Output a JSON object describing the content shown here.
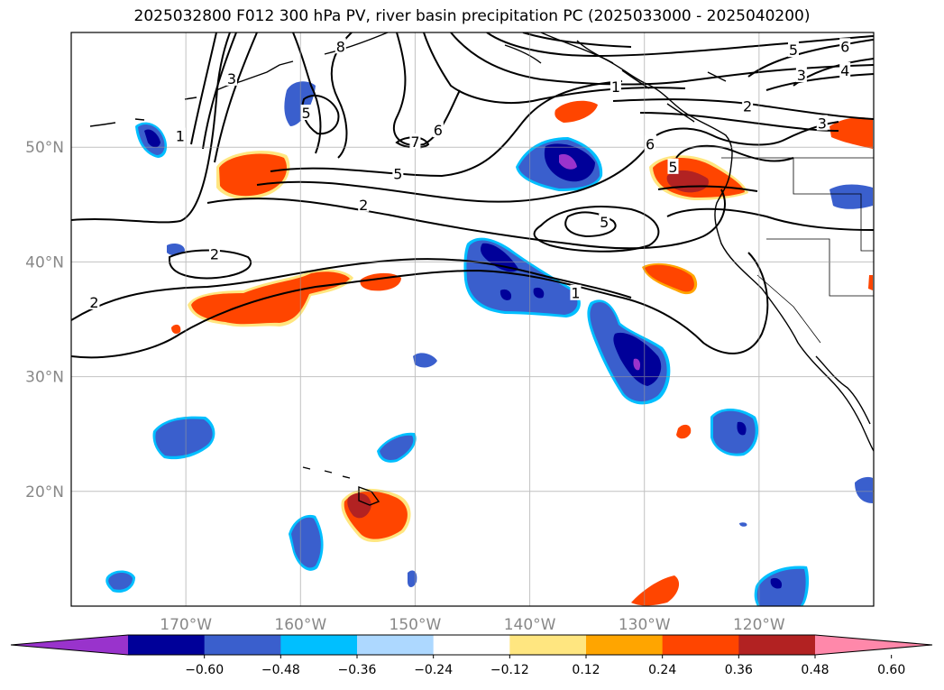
{
  "title": "2025032800 F012 300 hPa PV, river basin precipitation PC (2025033000 - 2025040200)",
  "map": {
    "lon_range": [
      -180,
      -110
    ],
    "lat_range": [
      10,
      60
    ],
    "lon_ticks": [
      {
        "value": -170,
        "label": "170°W"
      },
      {
        "value": -160,
        "label": "160°W"
      },
      {
        "value": -150,
        "label": "150°W"
      },
      {
        "value": -140,
        "label": "140°W"
      },
      {
        "value": -130,
        "label": "130°W"
      },
      {
        "value": -120,
        "label": "120°W"
      }
    ],
    "lat_ticks": [
      {
        "value": 50,
        "label": "50°N"
      },
      {
        "value": 40,
        "label": "40°N"
      },
      {
        "value": 30,
        "label": "30°N"
      },
      {
        "value": 20,
        "label": "20°N"
      }
    ],
    "gridlines": true
  },
  "contour_labels": [
    {
      "text": "1",
      "lon": -170.5,
      "lat": 51
    },
    {
      "text": "3",
      "lon": -166,
      "lat": 56
    },
    {
      "text": "8",
      "lon": -156.5,
      "lat": 58.8
    },
    {
      "text": "5",
      "lon": -159.5,
      "lat": 53
    },
    {
      "text": "7",
      "lon": -150,
      "lat": 50.5
    },
    {
      "text": "6",
      "lon": -148,
      "lat": 51.5
    },
    {
      "text": "5",
      "lon": -151.5,
      "lat": 47.7
    },
    {
      "text": "2",
      "lon": -154.5,
      "lat": 45
    },
    {
      "text": "2",
      "lon": -167.5,
      "lat": 40.7
    },
    {
      "text": "2",
      "lon": -178,
      "lat": 36.5
    },
    {
      "text": "1",
      "lon": -132.5,
      "lat": 55.3
    },
    {
      "text": "2",
      "lon": -121,
      "lat": 53.6
    },
    {
      "text": "3",
      "lon": -114.5,
      "lat": 52.1
    },
    {
      "text": "3",
      "lon": -116.3,
      "lat": 56.3
    },
    {
      "text": "4",
      "lon": -112.5,
      "lat": 56.7
    },
    {
      "text": "5",
      "lon": -117,
      "lat": 58.5
    },
    {
      "text": "6",
      "lon": -112.5,
      "lat": 58.8
    },
    {
      "text": "6",
      "lon": -129.5,
      "lat": 50.3
    },
    {
      "text": "5",
      "lon": -127.5,
      "lat": 48.3
    },
    {
      "text": "5",
      "lon": -133.5,
      "lat": 43.5
    },
    {
      "text": "1",
      "lon": -136,
      "lat": 37.3
    }
  ],
  "colorbar": {
    "ticks": [
      "−0.60",
      "−0.48",
      "−0.36",
      "−0.24",
      "−0.12",
      "0.12",
      "0.24",
      "0.36",
      "0.48",
      "0.60"
    ],
    "colors": [
      "#9933cc",
      "#000099",
      "#3a5fcd",
      "#00bfff",
      "#add8ff",
      "#ffffff",
      "#ffe680",
      "#ffa500",
      "#ff4500",
      "#b22222",
      "#ff88aa"
    ],
    "extend": "both"
  }
}
